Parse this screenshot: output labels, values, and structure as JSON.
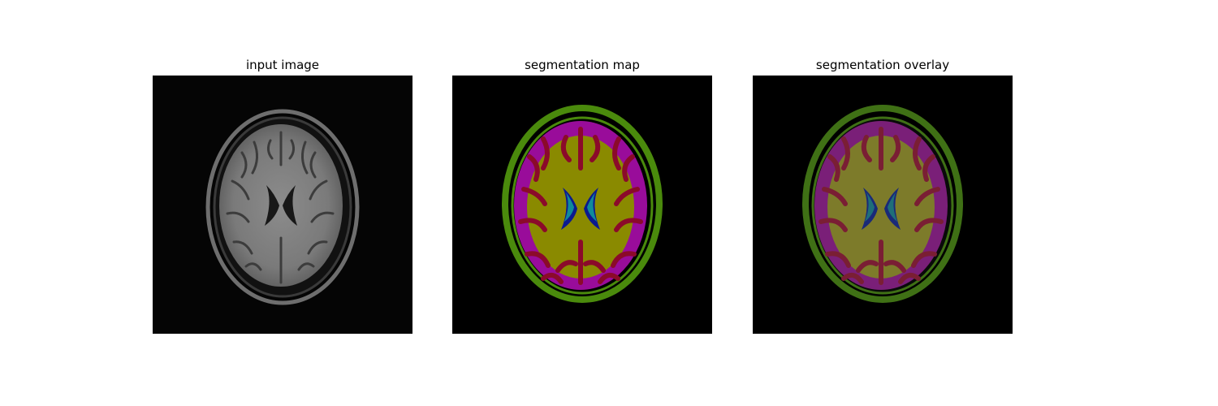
{
  "figure": {
    "panels": [
      {
        "title": "input image"
      },
      {
        "title": "segmentation map"
      },
      {
        "title": "segmentation overlay"
      }
    ]
  },
  "colors": {
    "background": "#000000",
    "skull_shell": "#4a8a0c",
    "csf_band": "#990c9a",
    "gray_matter": "#8b0a2a",
    "white_matter": "#8a8a00",
    "ventricle_left": "#0b1a8f",
    "ventricle_right": "#108a9a"
  },
  "icons": [
    "mri-axial-brain-slice"
  ]
}
